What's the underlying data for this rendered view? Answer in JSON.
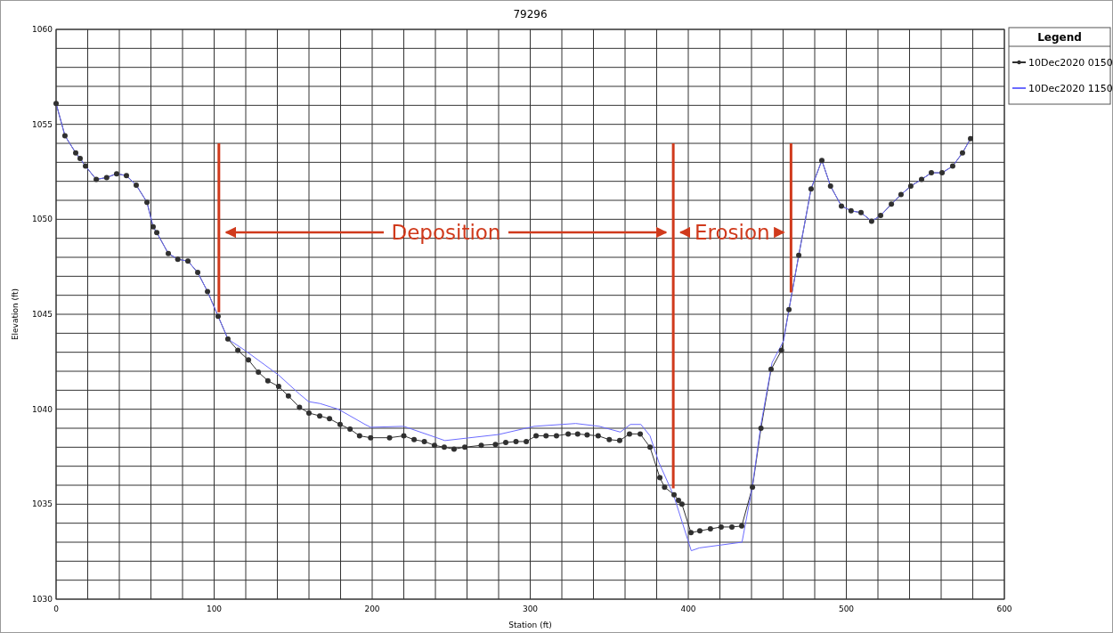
{
  "chart_data": {
    "type": "line",
    "title": "79296",
    "xlabel": "Station (ft)",
    "ylabel": "Elevation (ft)",
    "legend_title": "Legend",
    "legend": "right",
    "grid": true,
    "line_style": "solid",
    "xlim": [
      0,
      600
    ],
    "ylim": [
      1030,
      1060
    ],
    "xticks": [
      0,
      {
        "value": 20,
        "label": null
      },
      {
        "value": 40,
        "label": null
      },
      {
        "value": 60,
        "label": null
      },
      {
        "value": 80,
        "label": null
      },
      100,
      {
        "value": 120,
        "label": null
      },
      {
        "value": 140,
        "label": null
      },
      {
        "value": 160,
        "label": null
      },
      {
        "value": 180,
        "label": null
      },
      200,
      {
        "value": 220,
        "label": null
      },
      {
        "value": 240,
        "label": null
      },
      {
        "value": 260,
        "label": null
      },
      {
        "value": 280,
        "label": null
      },
      300,
      {
        "value": 320,
        "label": null
      },
      {
        "value": 340,
        "label": null
      },
      {
        "value": 360,
        "label": null
      },
      {
        "value": 380,
        "label": null
      },
      400,
      {
        "value": 420,
        "label": null
      },
      {
        "value": 440,
        "label": null
      },
      {
        "value": 460,
        "label": null
      },
      {
        "value": 480,
        "label": null
      },
      500,
      {
        "value": 520,
        "label": null
      },
      {
        "value": 540,
        "label": null
      },
      {
        "value": 560,
        "label": null
      },
      {
        "value": 580,
        "label": null
      },
      600
    ],
    "yticks": [
      1030,
      {
        "value": 1031,
        "label": null
      },
      {
        "value": 1032,
        "label": null
      },
      {
        "value": 1033,
        "label": null
      },
      {
        "value": 1034,
        "label": null
      },
      1035,
      {
        "value": 1036,
        "label": null
      },
      {
        "value": 1037,
        "label": null
      },
      {
        "value": 1038,
        "label": null
      },
      {
        "value": 1039,
        "label": null
      },
      1040,
      {
        "value": 1041,
        "label": null
      },
      {
        "value": 1042,
        "label": null
      },
      {
        "value": 1043,
        "label": null
      },
      {
        "value": 1044,
        "label": null
      },
      1045,
      {
        "value": 1046,
        "label": null
      },
      {
        "value": 1047,
        "label": null
      },
      {
        "value": 1048,
        "label": null
      },
      {
        "value": 1049,
        "label": null
      },
      1050,
      {
        "value": 1051,
        "label": null
      },
      {
        "value": 1052,
        "label": null
      },
      {
        "value": 1053,
        "label": null
      },
      {
        "value": 1054,
        "label": null
      },
      1055,
      {
        "value": 1056,
        "label": null
      },
      {
        "value": 1057,
        "label": null
      },
      {
        "value": 1058,
        "label": null
      },
      {
        "value": 1059,
        "label": null
      },
      1060
    ],
    "ref_lines": [
      {
        "axis": "x",
        "value": 103,
        "color": "#d03a1c"
      },
      {
        "axis": "x",
        "value": 390.5,
        "color": "#d03a1c"
      },
      {
        "axis": "x",
        "value": 465,
        "color": "#d03a1c"
      }
    ],
    "annotations": [
      "Deposition",
      "Erosion"
    ],
    "series": [
      {
        "name": "10Dec2020 0150",
        "color": "#303030",
        "marker": "circle",
        "x": [
          0,
          5.6,
          12.4,
          15.2,
          18.6,
          25.4,
          32,
          38.3,
          44.5,
          50.7,
          57.5,
          61.4,
          63.7,
          71,
          77,
          83.4,
          89.6,
          95.8,
          102.5,
          108.7,
          115,
          121.7,
          128,
          134,
          140.8,
          147,
          154,
          160,
          166.8,
          173,
          179.7,
          186,
          192,
          199,
          211,
          220,
          226.5,
          233,
          239.4,
          245.6,
          251.8,
          258.6,
          269,
          278,
          284.5,
          291,
          297.5,
          303.7,
          310,
          316.6,
          324,
          330,
          336,
          343,
          350,
          356.6,
          362.8,
          369.6,
          375.8,
          382,
          385,
          391,
          393.8,
          396,
          401.7,
          407.3,
          414,
          420.8,
          427.6,
          433.8,
          440.6,
          446,
          452.4,
          459,
          463.7,
          469.9,
          477.7,
          484.5,
          490,
          496.9,
          503,
          509.3,
          516,
          521.7,
          528.5,
          534.6,
          540.8,
          547.6,
          553.8,
          560.6,
          567.3,
          573.5,
          578.6
        ],
        "values": [
          1056.1,
          1054.4,
          1053.5,
          1053.2,
          1052.8,
          1052.1,
          1052.2,
          1052.4,
          1052.3,
          1051.8,
          1050.9,
          1049.6,
          1049.3,
          1048.2,
          1047.9,
          1047.8,
          1047.2,
          1046.2,
          1044.9,
          1043.7,
          1043.1,
          1042.6,
          1041.95,
          1041.5,
          1041.2,
          1040.7,
          1040.1,
          1039.8,
          1039.65,
          1039.5,
          1039.2,
          1038.95,
          1038.6,
          1038.5,
          1038.5,
          1038.6,
          1038.4,
          1038.3,
          1038.1,
          1038,
          1037.9,
          1038,
          1038.1,
          1038.15,
          1038.25,
          1038.3,
          1038.3,
          1038.6,
          1038.6,
          1038.6,
          1038.7,
          1038.7,
          1038.65,
          1038.6,
          1038.4,
          1038.35,
          1038.7,
          1038.7,
          1038,
          1036.4,
          1035.9,
          1035.5,
          1035.2,
          1035,
          1033.5,
          1033.6,
          1033.7,
          1033.8,
          1033.8,
          1033.85,
          1035.9,
          1039,
          1042.1,
          1043.1,
          1045.25,
          1048.1,
          1051.6,
          1053.1,
          1051.75,
          1050.7,
          1050.45,
          1050.35,
          1049.9,
          1050.2,
          1050.8,
          1051.3,
          1051.75,
          1052.1,
          1052.45,
          1052.45,
          1052.8,
          1053.5,
          1054.25
        ]
      },
      {
        "name": "10Dec2020 1150",
        "color": "#6b6bff",
        "marker": "none",
        "x": [
          0,
          5.6,
          12.4,
          15.2,
          18.6,
          25.4,
          32,
          38.3,
          44.5,
          50.7,
          57.5,
          61.4,
          63.7,
          71,
          77,
          83.4,
          89.6,
          95.8,
          102.5,
          108.7,
          120.3,
          140.8,
          154,
          159.8,
          167,
          178.6,
          195.5,
          199,
          220,
          246,
          280,
          302.5,
          328.8,
          343.7,
          357,
          363.4,
          370,
          375.8,
          381.4,
          390.8,
          401.9,
          407,
          434,
          440.4,
          446,
          453,
          460.3,
          463.7,
          469.9,
          477.7,
          484.5,
          490,
          496.9,
          503,
          509.3,
          516,
          521.7,
          528.5,
          534.6,
          540.8,
          547.6,
          553.8,
          560.6,
          567.3,
          573.5,
          578.6
        ],
        "values": [
          1056.1,
          1054.4,
          1053.5,
          1053.2,
          1052.8,
          1052.1,
          1052.2,
          1052.4,
          1052.3,
          1051.8,
          1050.9,
          1049.6,
          1049.3,
          1048.2,
          1047.9,
          1047.8,
          1047.2,
          1046.2,
          1044.9,
          1043.7,
          1043.05,
          1041.8,
          1040.8,
          1040.4,
          1040.3,
          1040,
          1039.2,
          1039.05,
          1039.1,
          1038.35,
          1038.67,
          1039.1,
          1039.25,
          1039.1,
          1038.8,
          1039.2,
          1039.2,
          1038.6,
          1037.2,
          1035.45,
          1032.55,
          1032.7,
          1033,
          1035.85,
          1039.2,
          1042.45,
          1043.6,
          1045.25,
          1048.1,
          1051.6,
          1053.1,
          1051.75,
          1050.7,
          1050.45,
          1050.35,
          1049.9,
          1050.2,
          1050.8,
          1051.3,
          1051.75,
          1052.1,
          1052.45,
          1052.45,
          1052.8,
          1053.5,
          1054.25
        ]
      }
    ]
  }
}
